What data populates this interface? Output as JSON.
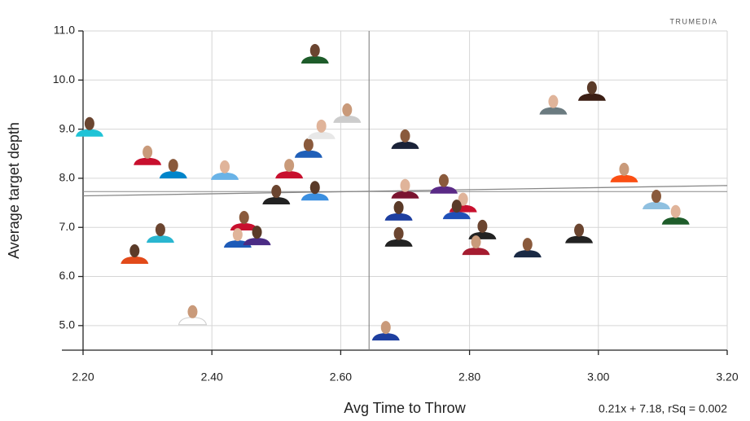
{
  "chart_data": {
    "type": "scatter",
    "logo": "TRUMEDIA",
    "xlabel": "Avg Time to Throw",
    "ylabel": "Average target depth",
    "regression": {
      "slope": 0.21,
      "intercept": 7.18,
      "label": "0.21x + 7.18, rSq = 0.002"
    },
    "x_mean": 2.644,
    "y_mean": 7.73,
    "xlim": [
      2.2,
      3.2
    ],
    "ylim": [
      4.5,
      11.0
    ],
    "xticks": [
      {
        "value": 2.2,
        "label": "2.20"
      },
      {
        "value": 2.4,
        "label": "2.40"
      },
      {
        "value": 2.6,
        "label": "2.60"
      },
      {
        "value": 2.8,
        "label": "2.80"
      },
      {
        "value": 3.0,
        "label": "3.00"
      },
      {
        "value": 3.2,
        "label": "3.20"
      }
    ],
    "yticks": [
      {
        "value": 5,
        "label": "5.0"
      },
      {
        "value": 6,
        "label": "6.0"
      },
      {
        "value": 7,
        "label": "7.0"
      },
      {
        "value": 8,
        "label": "8.0"
      },
      {
        "value": 9,
        "label": "9.0"
      },
      {
        "value": 10,
        "label": "10.0"
      },
      {
        "value": 11,
        "label": "11.0"
      }
    ],
    "grid": true,
    "x": [
      2.21,
      2.3,
      2.34,
      2.42,
      2.28,
      2.32,
      2.37,
      2.45,
      2.44,
      2.47,
      2.5,
      2.52,
      2.55,
      2.57,
      2.56,
      2.56,
      2.61,
      2.7,
      2.7,
      2.69,
      2.69,
      2.67,
      2.76,
      2.79,
      2.78,
      2.82,
      2.81,
      2.89,
      2.93,
      2.99,
      2.97,
      3.04,
      3.09,
      3.12
    ],
    "y": [
      9.03,
      8.45,
      8.18,
      8.15,
      6.44,
      6.87,
      5.2,
      7.12,
      6.77,
      6.82,
      7.65,
      8.18,
      8.6,
      8.98,
      7.73,
      10.52,
      9.31,
      8.78,
      7.77,
      7.32,
      6.79,
      4.88,
      7.87,
      7.49,
      7.35,
      6.94,
      6.62,
      6.57,
      9.48,
      9.76,
      6.86,
      8.1,
      7.55,
      7.24
    ],
    "colors": [
      "#1fc3d6",
      "#c8102e",
      "#0085ca",
      "#69b3e7",
      "#e24a1a",
      "#2ab6d0",
      "#ffffff",
      "#c8102e",
      "#1e5bb8",
      "#4b2c85",
      "#222222",
      "#c8102e",
      "#1f5fb8",
      "#e8e8e8",
      "#3b8fe0",
      "#1e5c2a",
      "#cccccc",
      "#1a2238",
      "#7a1430",
      "#1e3fa0",
      "#222222",
      "#1e3fa0",
      "#5a2a86",
      "#c8102e",
      "#2050b8",
      "#222222",
      "#a51c30",
      "#1a2a45",
      "#6b7b80",
      "#3b1e14",
      "#222222",
      "#fb4f14",
      "#8fc0e0",
      "#1e5c2a"
    ]
  }
}
